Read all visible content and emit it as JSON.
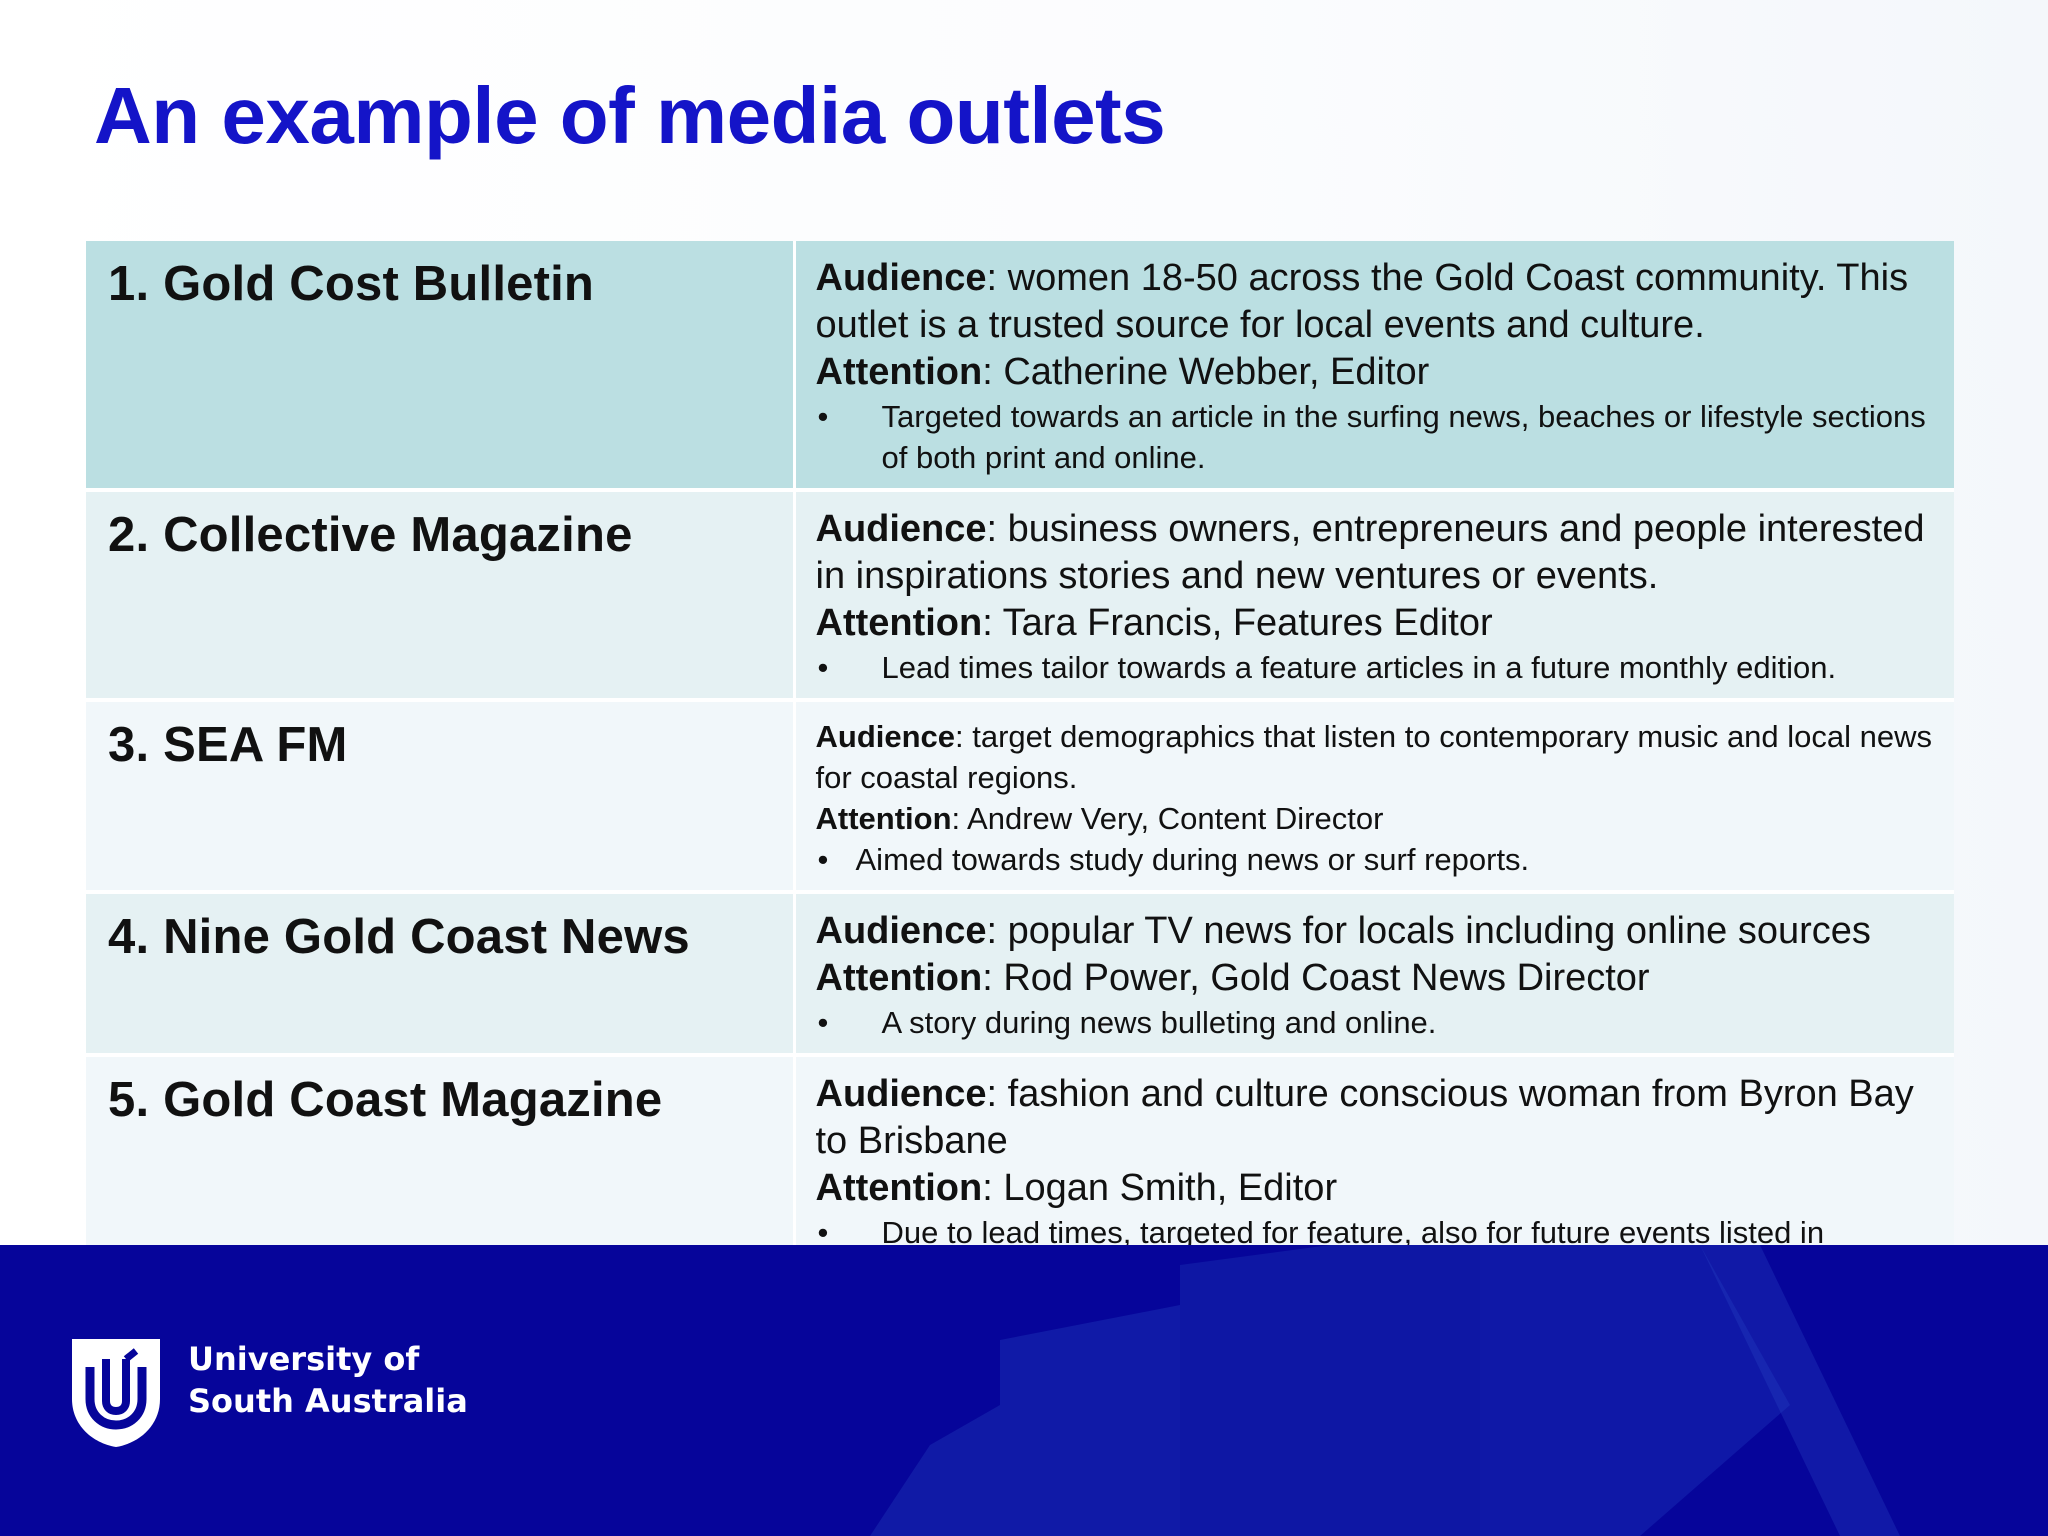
{
  "title": "An example of media outlets",
  "outlets": [
    {
      "name": "1. Gold Cost Bulletin",
      "audience_label": "Audience",
      "audience": ": women 18-50 across the Gold Coast community. This outlet is a trusted source for local events and culture.",
      "attention_label": "Attention",
      "attention": ": Catherine Webber, Editor",
      "bullet": "Targeted towards an article in the surfing news, beaches or lifestyle sections of both print and online."
    },
    {
      "name": "2. Collective Magazine",
      "audience_label": "Audience",
      "audience": ": business owners, entrepreneurs and people interested in inspirations stories and new ventures or events.",
      "attention_label": "Attention",
      "attention": ": Tara Francis, Features Editor",
      "bullet": "Lead times tailor towards a feature articles in a future monthly edition."
    },
    {
      "name": "3. SEA FM",
      "audience_label": "Audience",
      "audience": ": target demographics that listen to contemporary music and local news for coastal regions.",
      "attention_label": "Attention",
      "attention": ": Andrew Very, Content Director",
      "bullet": "Aimed towards study during news or surf reports."
    },
    {
      "name": "4. Nine Gold Coast News",
      "audience_label": "Audience",
      "audience": ": popular TV news for locals including online sources",
      "attention_label": "Attention",
      "attention": ": Rod Power, Gold Coast News Director",
      "bullet": "A story during news bulleting and online."
    },
    {
      "name": "5. Gold Coast Magazine",
      "audience_label": "Audience",
      "audience": ": fashion and culture conscious woman from Byron Bay to Brisbane",
      "attention_label": "Attention",
      "attention": ": Logan Smith, Editor",
      "bullet": "Due to lead times, targeted for feature, also for future events listed in upcoming editions."
    }
  ],
  "bullet_symbol": "•",
  "footer": {
    "logo_line1": "University of",
    "logo_line2": "South Australia",
    "logo_icon": "unisa-shield-icon"
  },
  "colors": {
    "title": "#1414c8",
    "footer": "#06059a",
    "row_1": "#bbdfe2",
    "row_even": "#e5f1f3",
    "row_odd": "#f1f7fa"
  }
}
